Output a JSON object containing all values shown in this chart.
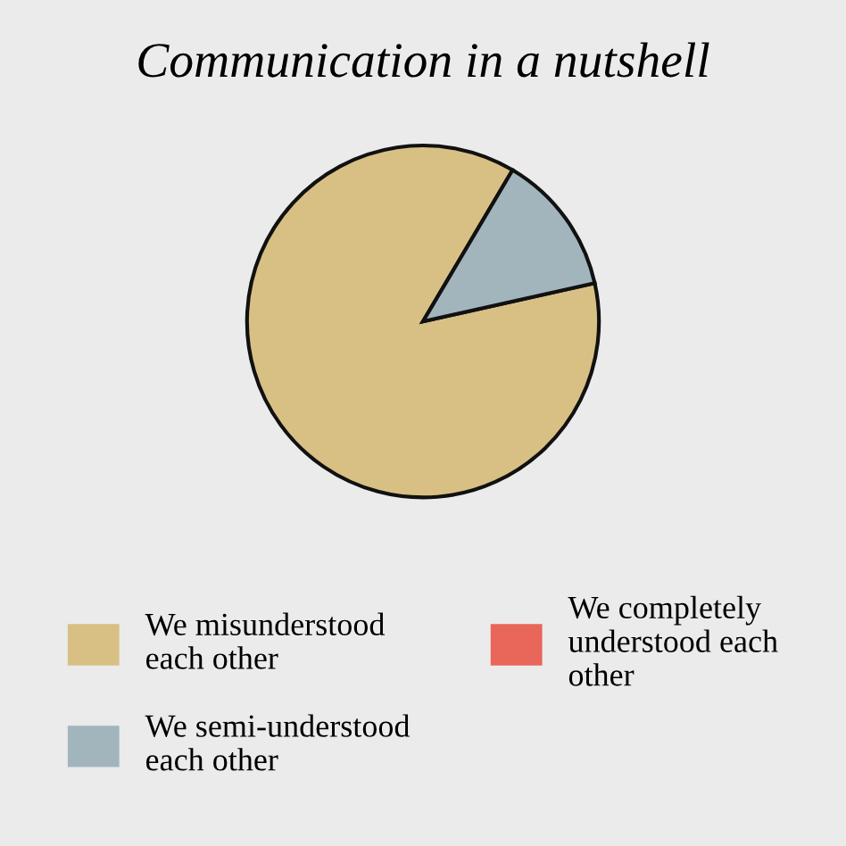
{
  "chart_data": {
    "type": "pie",
    "title": "Communication in a nutshell",
    "categories": [
      "We misunderstood each other",
      "We semi-understood each other",
      "We completely understood each other"
    ],
    "values": [
      87,
      13,
      0
    ],
    "colors": [
      "#d8c084",
      "#a2b5bd",
      "#e8665a"
    ],
    "legend": "bottom"
  }
}
